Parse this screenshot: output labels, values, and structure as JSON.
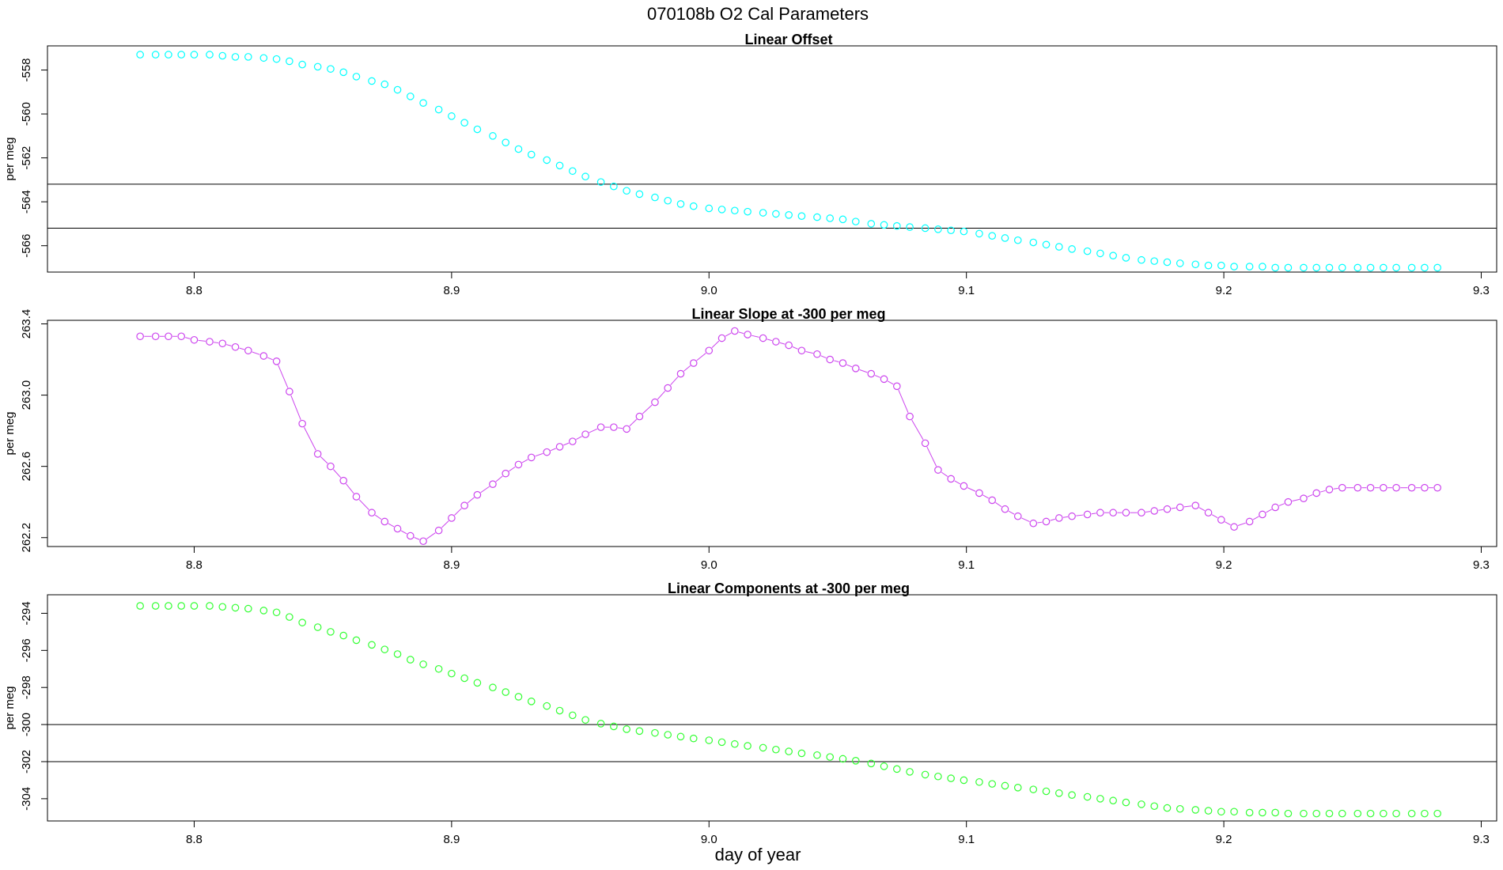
{
  "title": "070108b   O2 Cal Parameters",
  "xlabel": "day of year",
  "chart_data": [
    {
      "type": "scatter",
      "title": "Linear Offset",
      "ylabel": "per meg",
      "color": "#00ffff",
      "connected": false,
      "xlim": [
        8.743,
        9.306
      ],
      "ylim": [
        -567.2,
        -556.9
      ],
      "xticks": [
        8.8,
        8.9,
        9.0,
        9.1,
        9.2,
        9.3
      ],
      "yticks": [
        -558,
        -560,
        -562,
        -564,
        -566
      ],
      "hlines": [
        -563.2,
        -565.2
      ],
      "x": [
        8.779,
        8.785,
        8.79,
        8.795,
        8.8,
        8.806,
        8.811,
        8.816,
        8.821,
        8.827,
        8.832,
        8.837,
        8.842,
        8.848,
        8.853,
        8.858,
        8.863,
        8.869,
        8.874,
        8.879,
        8.884,
        8.889,
        8.895,
        8.9,
        8.905,
        8.91,
        8.916,
        8.921,
        8.926,
        8.931,
        8.937,
        8.942,
        8.947,
        8.952,
        8.958,
        8.963,
        8.968,
        8.973,
        8.979,
        8.984,
        8.989,
        8.994,
        9.0,
        9.005,
        9.01,
        9.015,
        9.021,
        9.026,
        9.031,
        9.036,
        9.042,
        9.047,
        9.052,
        9.057,
        9.063,
        9.068,
        9.073,
        9.078,
        9.084,
        9.089,
        9.094,
        9.099,
        9.105,
        9.11,
        9.115,
        9.12,
        9.126,
        9.131,
        9.136,
        9.141,
        9.147,
        9.152,
        9.157,
        9.162,
        9.168,
        9.173,
        9.178,
        9.183,
        9.189,
        9.194,
        9.199,
        9.204,
        9.21,
        9.215,
        9.22,
        9.225,
        9.231,
        9.236,
        9.241,
        9.246,
        9.252,
        9.257,
        9.262,
        9.267,
        9.273,
        9.278,
        9.283
      ],
      "y": [
        -557.3,
        -557.3,
        -557.3,
        -557.3,
        -557.3,
        -557.3,
        -557.35,
        -557.4,
        -557.4,
        -557.45,
        -557.5,
        -557.6,
        -557.75,
        -557.85,
        -557.95,
        -558.1,
        -558.3,
        -558.5,
        -558.65,
        -558.9,
        -559.2,
        -559.5,
        -559.8,
        -560.1,
        -560.4,
        -560.7,
        -561.0,
        -561.3,
        -561.6,
        -561.85,
        -562.1,
        -562.35,
        -562.6,
        -562.85,
        -563.1,
        -563.3,
        -563.5,
        -563.65,
        -563.8,
        -563.95,
        -564.1,
        -564.2,
        -564.3,
        -564.35,
        -564.4,
        -564.45,
        -564.5,
        -564.55,
        -564.6,
        -564.65,
        -564.7,
        -564.75,
        -564.8,
        -564.9,
        -565.0,
        -565.05,
        -565.1,
        -565.15,
        -565.2,
        -565.25,
        -565.3,
        -565.35,
        -565.45,
        -565.55,
        -565.65,
        -565.75,
        -565.85,
        -565.95,
        -566.05,
        -566.15,
        -566.25,
        -566.35,
        -566.45,
        -566.55,
        -566.65,
        -566.7,
        -566.75,
        -566.8,
        -566.85,
        -566.9,
        -566.9,
        -566.95,
        -566.95,
        -566.95,
        -567.0,
        -567.0,
        -567.0,
        -567.0,
        -567.0,
        -567.0,
        -567.0,
        -567.0,
        -567.0,
        -567.0,
        -567.0,
        -567.0,
        -567.0
      ]
    },
    {
      "type": "line",
      "title": "Linear Slope at -300 per meg",
      "ylabel": "per meg",
      "color": "#cc44ee",
      "connected": true,
      "xlim": [
        8.743,
        9.306
      ],
      "ylim": [
        262.15,
        263.42
      ],
      "xticks": [
        8.8,
        8.9,
        9.0,
        9.1,
        9.2,
        9.3
      ],
      "yticks": [
        263.4,
        263.0,
        262.6,
        262.2
      ],
      "yticklabels": [
        "263.4",
        "263.0",
        "262.6",
        "262.2"
      ],
      "hlines": [],
      "x": [
        8.779,
        8.785,
        8.79,
        8.795,
        8.8,
        8.806,
        8.811,
        8.816,
        8.821,
        8.827,
        8.832,
        8.837,
        8.842,
        8.848,
        8.853,
        8.858,
        8.863,
        8.869,
        8.874,
        8.879,
        8.884,
        8.889,
        8.895,
        8.9,
        8.905,
        8.91,
        8.916,
        8.921,
        8.926,
        8.931,
        8.937,
        8.942,
        8.947,
        8.952,
        8.958,
        8.963,
        8.968,
        8.973,
        8.979,
        8.984,
        8.989,
        8.994,
        9.0,
        9.005,
        9.01,
        9.015,
        9.021,
        9.026,
        9.031,
        9.036,
        9.042,
        9.047,
        9.052,
        9.057,
        9.063,
        9.068,
        9.073,
        9.078,
        9.084,
        9.089,
        9.094,
        9.099,
        9.105,
        9.11,
        9.115,
        9.12,
        9.126,
        9.131,
        9.136,
        9.141,
        9.147,
        9.152,
        9.157,
        9.162,
        9.168,
        9.173,
        9.178,
        9.183,
        9.189,
        9.194,
        9.199,
        9.204,
        9.21,
        9.215,
        9.22,
        9.225,
        9.231,
        9.236,
        9.241,
        9.246,
        9.252,
        9.257,
        9.262,
        9.267,
        9.273,
        9.278,
        9.283
      ],
      "y": [
        263.33,
        263.33,
        263.33,
        263.33,
        263.31,
        263.3,
        263.29,
        263.27,
        263.25,
        263.22,
        263.19,
        263.02,
        262.84,
        262.67,
        262.6,
        262.52,
        262.43,
        262.34,
        262.29,
        262.25,
        262.21,
        262.18,
        262.24,
        262.31,
        262.38,
        262.44,
        262.5,
        262.56,
        262.61,
        262.65,
        262.68,
        262.71,
        262.74,
        262.78,
        262.82,
        262.82,
        262.81,
        262.88,
        262.96,
        263.04,
        263.12,
        263.18,
        263.25,
        263.32,
        263.36,
        263.34,
        263.32,
        263.3,
        263.28,
        263.25,
        263.23,
        263.2,
        263.18,
        263.15,
        263.12,
        263.09,
        263.05,
        262.88,
        262.73,
        262.58,
        262.53,
        262.49,
        262.45,
        262.41,
        262.36,
        262.32,
        262.28,
        262.29,
        262.31,
        262.32,
        262.33,
        262.34,
        262.34,
        262.34,
        262.34,
        262.35,
        262.36,
        262.37,
        262.38,
        262.34,
        262.3,
        262.26,
        262.29,
        262.33,
        262.37,
        262.4,
        262.42,
        262.45,
        262.47,
        262.48,
        262.48,
        262.48,
        262.48,
        262.48,
        262.48,
        262.48,
        262.48
      ]
    },
    {
      "type": "scatter",
      "title": "Linear Components at -300 per meg",
      "ylabel": "per meg",
      "color": "#33ff33",
      "connected": false,
      "xlim": [
        8.743,
        9.306
      ],
      "ylim": [
        -305.2,
        -293.0
      ],
      "xticks": [
        8.8,
        8.9,
        9.0,
        9.1,
        9.2,
        9.3
      ],
      "yticks": [
        -294,
        -296,
        -298,
        -300,
        -302,
        -304
      ],
      "hlines": [
        -300.0,
        -302.0
      ],
      "x": [
        8.779,
        8.785,
        8.79,
        8.795,
        8.8,
        8.806,
        8.811,
        8.816,
        8.821,
        8.827,
        8.832,
        8.837,
        8.842,
        8.848,
        8.853,
        8.858,
        8.863,
        8.869,
        8.874,
        8.879,
        8.884,
        8.889,
        8.895,
        8.9,
        8.905,
        8.91,
        8.916,
        8.921,
        8.926,
        8.931,
        8.937,
        8.942,
        8.947,
        8.952,
        8.958,
        8.963,
        8.968,
        8.973,
        8.979,
        8.984,
        8.989,
        8.994,
        9.0,
        9.005,
        9.01,
        9.015,
        9.021,
        9.026,
        9.031,
        9.036,
        9.042,
        9.047,
        9.052,
        9.057,
        9.063,
        9.068,
        9.073,
        9.078,
        9.084,
        9.089,
        9.094,
        9.099,
        9.105,
        9.11,
        9.115,
        9.12,
        9.126,
        9.131,
        9.136,
        9.141,
        9.147,
        9.152,
        9.157,
        9.162,
        9.168,
        9.173,
        9.178,
        9.183,
        9.189,
        9.194,
        9.199,
        9.204,
        9.21,
        9.215,
        9.22,
        9.225,
        9.231,
        9.236,
        9.241,
        9.246,
        9.252,
        9.257,
        9.262,
        9.267,
        9.273,
        9.278,
        9.283
      ],
      "y": [
        -293.6,
        -293.6,
        -293.6,
        -293.6,
        -293.6,
        -293.6,
        -293.65,
        -293.7,
        -293.75,
        -293.85,
        -293.95,
        -294.2,
        -294.5,
        -294.75,
        -295.0,
        -295.2,
        -295.45,
        -295.7,
        -295.95,
        -296.2,
        -296.5,
        -296.75,
        -297.0,
        -297.25,
        -297.5,
        -297.75,
        -298.0,
        -298.25,
        -298.5,
        -298.75,
        -299.0,
        -299.25,
        -299.5,
        -299.75,
        -299.95,
        -300.1,
        -300.25,
        -300.35,
        -300.45,
        -300.55,
        -300.65,
        -300.75,
        -300.85,
        -300.95,
        -301.05,
        -301.15,
        -301.25,
        -301.35,
        -301.45,
        -301.55,
        -301.65,
        -301.75,
        -301.85,
        -301.95,
        -302.1,
        -302.25,
        -302.4,
        -302.55,
        -302.7,
        -302.8,
        -302.9,
        -303.0,
        -303.1,
        -303.2,
        -303.3,
        -303.4,
        -303.5,
        -303.6,
        -303.7,
        -303.8,
        -303.9,
        -304.0,
        -304.1,
        -304.2,
        -304.3,
        -304.4,
        -304.5,
        -304.55,
        -304.6,
        -304.65,
        -304.7,
        -304.7,
        -304.75,
        -304.75,
        -304.75,
        -304.8,
        -304.8,
        -304.8,
        -304.8,
        -304.8,
        -304.8,
        -304.8,
        -304.8,
        -304.8,
        -304.8,
        -304.8,
        -304.8
      ]
    }
  ]
}
